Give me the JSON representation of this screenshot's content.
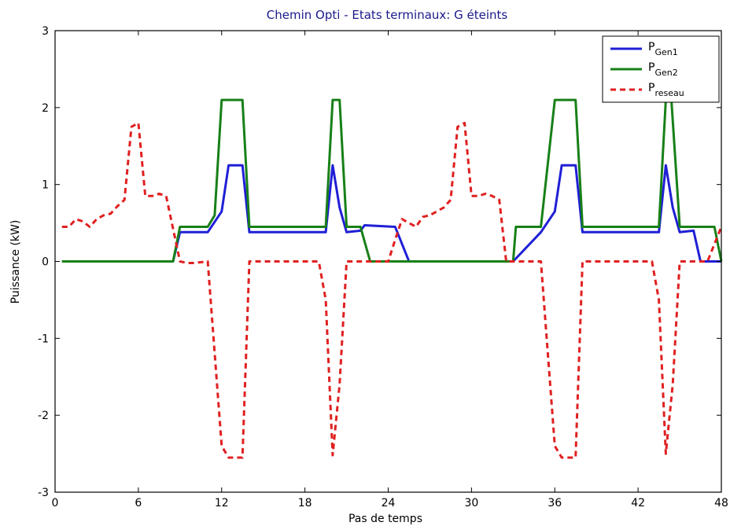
{
  "chart_data": {
    "type": "line",
    "title": "Chemin Opti - Etats terminaux: G éteints",
    "xlabel": "Pas de temps",
    "ylabel": "Puissance (kW)",
    "xlim": [
      0,
      48
    ],
    "ylim": [
      -3,
      3
    ],
    "xticks": [
      "0",
      "6",
      "12",
      "18",
      "24",
      "30",
      "36",
      "42",
      "48"
    ],
    "xtick_values": [
      0,
      6,
      12,
      18,
      24,
      30,
      36,
      42,
      48
    ],
    "yticks": [
      "-3",
      "-2",
      "-1",
      "0",
      "1",
      "2",
      "3"
    ],
    "ytick_values": [
      -3,
      -2,
      -1,
      0,
      1,
      2,
      3
    ],
    "grid": false,
    "legend_position": "top-right",
    "series": [
      {
        "name": "P",
        "name_subscript": "Gen1",
        "color": "#1f1fd6",
        "style": "solid",
        "x": [
          0.5,
          8.5,
          9.0,
          11.0,
          12.0,
          12.5,
          13.5,
          14.0,
          19.5,
          20.0,
          20.5,
          21.0,
          22.0,
          22.3,
          24.5,
          25.5,
          33.0,
          35.0,
          36.0,
          36.5,
          37.5,
          38.0,
          43.5,
          44.0,
          44.5,
          45.0,
          46.0,
          46.5,
          48.0
        ],
        "y": [
          0,
          0,
          0.38,
          0.38,
          0.65,
          1.25,
          1.25,
          0.38,
          0.38,
          1.25,
          0.7,
          0.38,
          0.4,
          0.47,
          0.45,
          0.0,
          0.0,
          0.38,
          0.65,
          1.25,
          1.25,
          0.38,
          0.38,
          1.25,
          0.7,
          0.38,
          0.4,
          0.0,
          0.0
        ]
      },
      {
        "name": "P",
        "name_subscript": "Gen2",
        "color": "#178017",
        "style": "solid",
        "x": [
          0.5,
          8.5,
          9.0,
          11.0,
          11.5,
          12.0,
          13.5,
          14.0,
          19.5,
          20.0,
          20.5,
          21.0,
          22.0,
          22.7,
          33.0,
          33.2,
          35.0,
          36.0,
          37.5,
          38.0,
          43.5,
          44.0,
          44.4,
          45.0,
          46.0,
          47.5,
          48.0
        ],
        "y": [
          0,
          0,
          0.45,
          0.45,
          0.6,
          2.1,
          2.1,
          0.45,
          0.45,
          2.1,
          2.1,
          0.45,
          0.45,
          0.0,
          0.0,
          0.45,
          0.45,
          2.1,
          2.1,
          0.45,
          0.45,
          2.1,
          2.1,
          0.45,
          0.45,
          0.45,
          0.0
        ]
      },
      {
        "name": "P",
        "name_subscript": "reseau",
        "color": "#e02020",
        "style": "dashed",
        "x": [
          0.5,
          1.0,
          1.5,
          2.0,
          2.5,
          3.0,
          3.5,
          4.0,
          4.5,
          5.0,
          5.5,
          6.0,
          6.5,
          7.0,
          7.5,
          8.0,
          9.0,
          9.5,
          10.0,
          11.0,
          12.0,
          12.5,
          13.5,
          14.0,
          19.0,
          19.5,
          20.0,
          20.5,
          21.0,
          22.0,
          22.5,
          24.0,
          24.5,
          25.0,
          26.0,
          26.5,
          27.0,
          28.0,
          28.5,
          29.0,
          29.5,
          30.0,
          30.5,
          31.0,
          31.5,
          32.0,
          32.5,
          33.0,
          34.5,
          35.0,
          36.0,
          36.5,
          37.5,
          38.0,
          43.0,
          43.5,
          44.0,
          44.5,
          45.0,
          46.0,
          47.0,
          48.0
        ],
        "y": [
          0.45,
          0.45,
          0.55,
          0.52,
          0.45,
          0.55,
          0.6,
          0.62,
          0.72,
          0.8,
          1.75,
          1.8,
          0.85,
          0.85,
          0.88,
          0.85,
          0.0,
          -0.02,
          -0.02,
          0.0,
          -2.4,
          -2.55,
          -2.55,
          0.0,
          0.0,
          -0.5,
          -2.52,
          -1.6,
          0.0,
          0.0,
          0.0,
          0.0,
          0.28,
          0.55,
          0.45,
          0.58,
          0.6,
          0.7,
          0.8,
          1.75,
          1.8,
          0.85,
          0.85,
          0.88,
          0.85,
          0.8,
          0.0,
          0.0,
          0.0,
          0.0,
          -2.4,
          -2.55,
          -2.55,
          0.0,
          0.0,
          -0.5,
          -2.5,
          -1.6,
          0.0,
          0.0,
          0.0,
          0.45
        ]
      }
    ]
  }
}
